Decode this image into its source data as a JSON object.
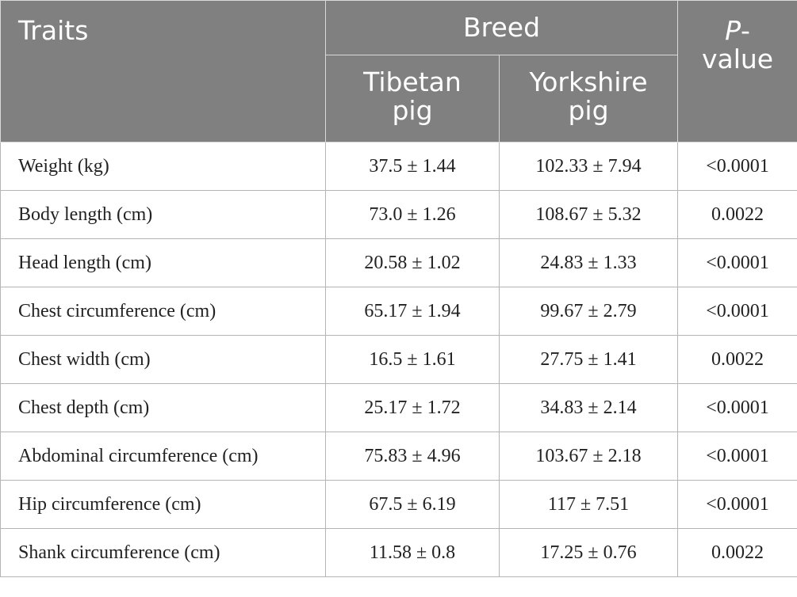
{
  "table": {
    "header": {
      "traits": "Traits",
      "breed": "Breed",
      "p_value_italic": "P",
      "p_value_rest": "-",
      "p_value_line2": "value",
      "tibetan_line1": "Tibetan",
      "tibetan_line2": "pig",
      "yorkshire_line1": "Yorkshire",
      "yorkshire_line2": "pig"
    },
    "rows": [
      {
        "trait": "Weight (kg)",
        "tibetan": "37.5 ± 1.44",
        "yorkshire": "102.33 ± 7.94",
        "p": "<0.0001"
      },
      {
        "trait": "Body length (cm)",
        "tibetan": "73.0 ± 1.26",
        "yorkshire": "108.67 ± 5.32",
        "p": "0.0022"
      },
      {
        "trait": "Head length (cm)",
        "tibetan": "20.58 ± 1.02",
        "yorkshire": "24.83 ± 1.33",
        "p": "<0.0001"
      },
      {
        "trait": "Chest circumference (cm)",
        "tibetan": "65.17 ± 1.94",
        "yorkshire": "99.67 ± 2.79",
        "p": "<0.0001"
      },
      {
        "trait": "Chest width (cm)",
        "tibetan": "16.5 ± 1.61",
        "yorkshire": "27.75 ± 1.41",
        "p": "0.0022"
      },
      {
        "trait": "Chest depth (cm)",
        "tibetan": "25.17 ± 1.72",
        "yorkshire": "34.83 ± 2.14",
        "p": "<0.0001"
      },
      {
        "trait": "Abdominal circumference (cm)",
        "tibetan": "75.83 ± 4.96",
        "yorkshire": "103.67 ± 2.18",
        "p": "<0.0001"
      },
      {
        "trait": "Hip circumference (cm)",
        "tibetan": "67.5 ± 6.19",
        "yorkshire": "117 ± 7.51",
        "p": "<0.0001"
      },
      {
        "trait": "Shank circumference (cm)",
        "tibetan": "11.58 ± 0.8",
        "yorkshire": "17.25 ± 0.76",
        "p": "0.0022"
      }
    ]
  },
  "colors": {
    "header_bg": "#808080",
    "header_text": "#ffffff",
    "grid_line": "#b5b5b5"
  }
}
